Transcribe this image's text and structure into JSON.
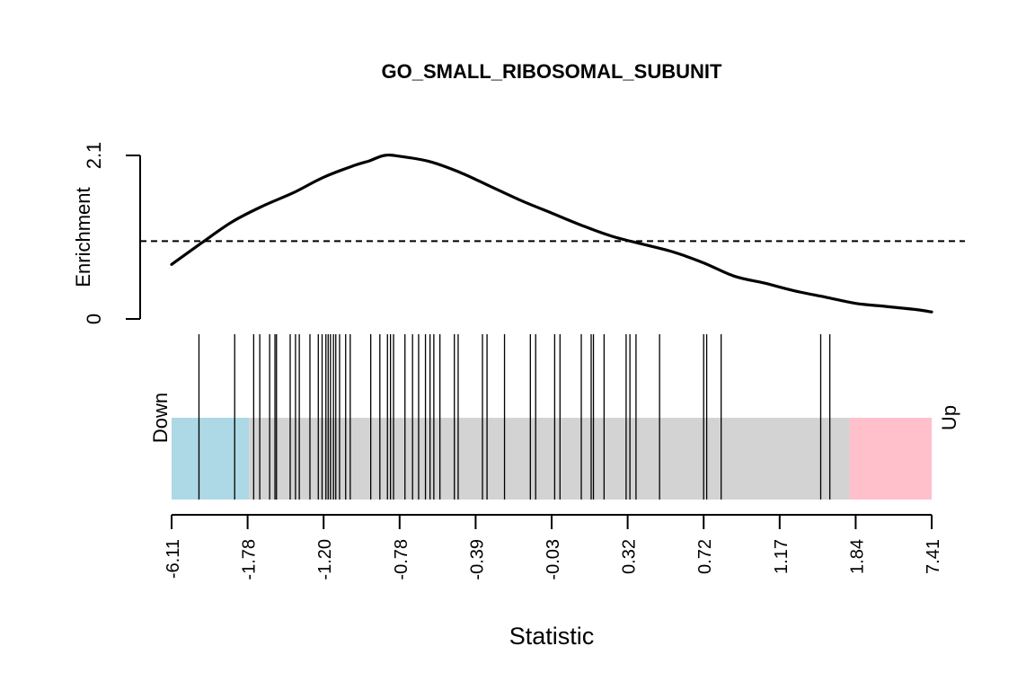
{
  "chart_data": {
    "type": "barcode-enrichment",
    "title": "GO_SMALL_RIBOSOMAL_SUBUNIT",
    "xlabel": "Statistic",
    "ylabel": "Enrichment",
    "ylim": [
      0,
      2.1
    ],
    "y_ticks": [
      "0",
      "2.1"
    ],
    "baseline_enrichment": 1.0,
    "x_tick_labels": [
      "-6.11",
      "-1.78",
      "-1.20",
      "-0.78",
      "-0.39",
      "-0.03",
      "0.32",
      "0.72",
      "1.17",
      "1.84",
      "7.41"
    ],
    "rank_range": [
      0,
      10
    ],
    "regions": [
      {
        "label": "Down",
        "from": 0,
        "to": 1.02,
        "color": "#add8e6"
      },
      {
        "label": "",
        "from": 1.02,
        "to": 8.92,
        "color": "#d3d3d3"
      },
      {
        "label": "Up",
        "from": 8.92,
        "to": 10,
        "color": "#ffc0cb"
      }
    ],
    "barcode_positions": [
      0.36,
      0.83,
      1.08,
      1.16,
      1.29,
      1.36,
      1.38,
      1.56,
      1.63,
      1.68,
      1.82,
      1.93,
      1.98,
      2.03,
      2.06,
      2.09,
      2.13,
      2.16,
      2.21,
      2.29,
      2.35,
      2.62,
      2.74,
      2.84,
      2.88,
      2.92,
      3.07,
      3.17,
      3.25,
      3.34,
      3.4,
      3.45,
      3.53,
      3.72,
      3.77,
      4.09,
      4.15,
      4.38,
      4.72,
      4.79,
      5.04,
      5.11,
      5.39,
      5.52,
      5.55,
      5.69,
      5.98,
      6.03,
      6.11,
      6.42,
      7.0,
      7.04,
      7.23,
      8.54,
      8.66
    ],
    "enrichment_curve": [
      [
        0.0,
        0.7
      ],
      [
        0.4,
        0.98
      ],
      [
        0.8,
        1.25
      ],
      [
        1.2,
        1.45
      ],
      [
        1.6,
        1.62
      ],
      [
        2.0,
        1.82
      ],
      [
        2.4,
        1.97
      ],
      [
        2.6,
        2.03
      ],
      [
        2.8,
        2.1
      ],
      [
        3.0,
        2.09
      ],
      [
        3.4,
        2.02
      ],
      [
        3.8,
        1.88
      ],
      [
        4.2,
        1.7
      ],
      [
        4.6,
        1.52
      ],
      [
        5.0,
        1.36
      ],
      [
        5.4,
        1.2
      ],
      [
        5.8,
        1.06
      ],
      [
        6.2,
        0.96
      ],
      [
        6.6,
        0.86
      ],
      [
        7.0,
        0.72
      ],
      [
        7.4,
        0.55
      ],
      [
        7.8,
        0.46
      ],
      [
        8.2,
        0.36
      ],
      [
        8.6,
        0.28
      ],
      [
        9.0,
        0.2
      ],
      [
        9.4,
        0.16
      ],
      [
        9.8,
        0.12
      ],
      [
        10.0,
        0.09
      ]
    ]
  }
}
